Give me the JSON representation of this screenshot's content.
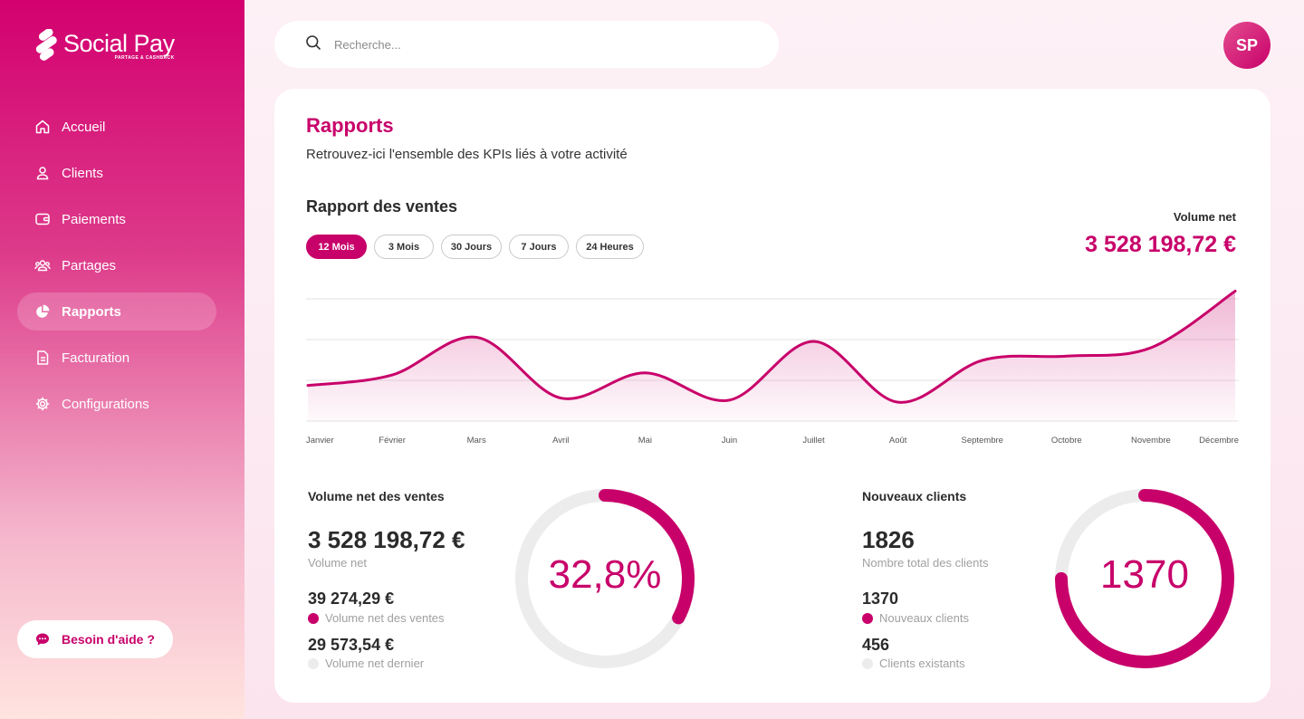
{
  "brand": {
    "name": "Social Pay",
    "tagline": "PARTAGE & CASHBACK"
  },
  "nav": [
    {
      "label": "Accueil",
      "icon": "home-icon"
    },
    {
      "label": "Clients",
      "icon": "user-icon"
    },
    {
      "label": "Paiements",
      "icon": "wallet-icon"
    },
    {
      "label": "Partages",
      "icon": "users-icon"
    },
    {
      "label": "Rapports",
      "icon": "pie-chart-icon",
      "active": true
    },
    {
      "label": "Facturation",
      "icon": "document-icon"
    },
    {
      "label": "Configurations",
      "icon": "gear-icon"
    }
  ],
  "help": {
    "label": "Besoin d'aide ?"
  },
  "search": {
    "placeholder": "Recherche..."
  },
  "user": {
    "initials": "SP"
  },
  "page": {
    "title": "Rapports",
    "subtitle": "Retrouvez-ici l'ensemble des KPIs liés à votre activité"
  },
  "sales": {
    "title": "Rapport des ventes",
    "filters": [
      "12 Mois",
      "3 Mois",
      "30 Jours",
      "7 Jours",
      "24 Heures"
    ],
    "active_filter": "12 Mois",
    "volume_label": "Volume net",
    "volume_value": "3 528 198,72 €"
  },
  "chart_data": {
    "type": "area",
    "x": [
      "Janvier",
      "Février",
      "Mars",
      "Avril",
      "Mai",
      "Juin",
      "Juillet",
      "Août",
      "Septembre",
      "Octobre",
      "Novembre",
      "Décembre"
    ],
    "values": [
      47,
      52,
      70,
      41,
      53,
      40,
      68,
      39,
      59,
      61,
      65,
      92
    ],
    "ylim": [
      30,
      100
    ],
    "grid": true,
    "title": "",
    "xlabel": "",
    "ylabel": ""
  },
  "stats": {
    "net": {
      "title": "Volume net des ventes",
      "total": "3 528 198,72 €",
      "total_caption": "Volume net",
      "a_value": "39 274,29 €",
      "a_label": "Volume net des ventes",
      "b_value": "29 573,54 €",
      "b_label": "Volume net dernier",
      "ring_fraction": 0.328,
      "ring_text": "32,8%"
    },
    "clients": {
      "title": "Nouveaux clients",
      "total": "1826",
      "total_caption": "Nombre total des clients",
      "a_value": "1370",
      "a_label": "Nouveaux clients",
      "b_value": "456",
      "b_label": "Clients existants",
      "ring_fraction": 0.75,
      "ring_text": "1370"
    }
  },
  "colors": {
    "accent": "#c8006a",
    "track": "#ececec"
  }
}
